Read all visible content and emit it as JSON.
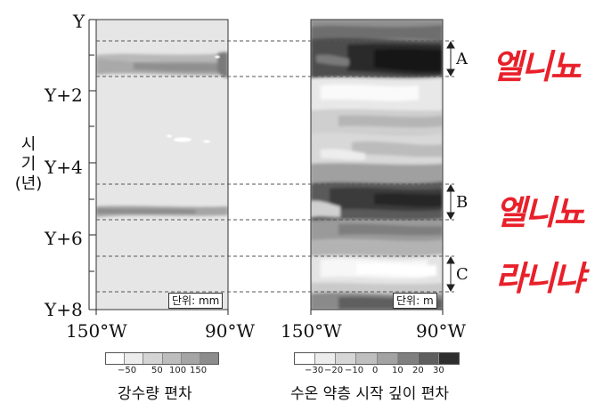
{
  "y_axis": {
    "ticks": [
      "Y",
      "Y+2",
      "Y+4",
      "Y+6",
      "Y+8"
    ],
    "title_chars": [
      "시",
      "기",
      "(년)"
    ]
  },
  "panel_left": {
    "x_ticks": [
      "150°W",
      "90°W"
    ],
    "unit": "단위: mm",
    "legend": {
      "title": "강수량 편차",
      "labels": [
        "−50",
        "50",
        "100",
        "150"
      ],
      "colors": [
        "#ffffff",
        "#ececec",
        "#d4d4d4",
        "#bdbdbd",
        "#a5a5a5",
        "#8c8c8c"
      ]
    }
  },
  "panel_right": {
    "x_ticks": [
      "150°W",
      "90°W"
    ],
    "unit": "단위: m",
    "legend": {
      "title": "수온 약층 시작 깊이 편차",
      "labels": [
        "−30",
        "−20",
        "−10",
        "0",
        "10",
        "20",
        "30"
      ],
      "colors": [
        "#ffffff",
        "#ececec",
        "#d6d6d6",
        "#bfbfbf",
        "#a3a3a3",
        "#7f7f7f",
        "#5e5e5e",
        "#2e2e2e"
      ]
    }
  },
  "brackets": [
    {
      "label": "A",
      "annotation": "엘니뇨"
    },
    {
      "label": "B",
      "annotation": "엘니뇨"
    },
    {
      "label": "C",
      "annotation": "라니냐"
    }
  ]
}
